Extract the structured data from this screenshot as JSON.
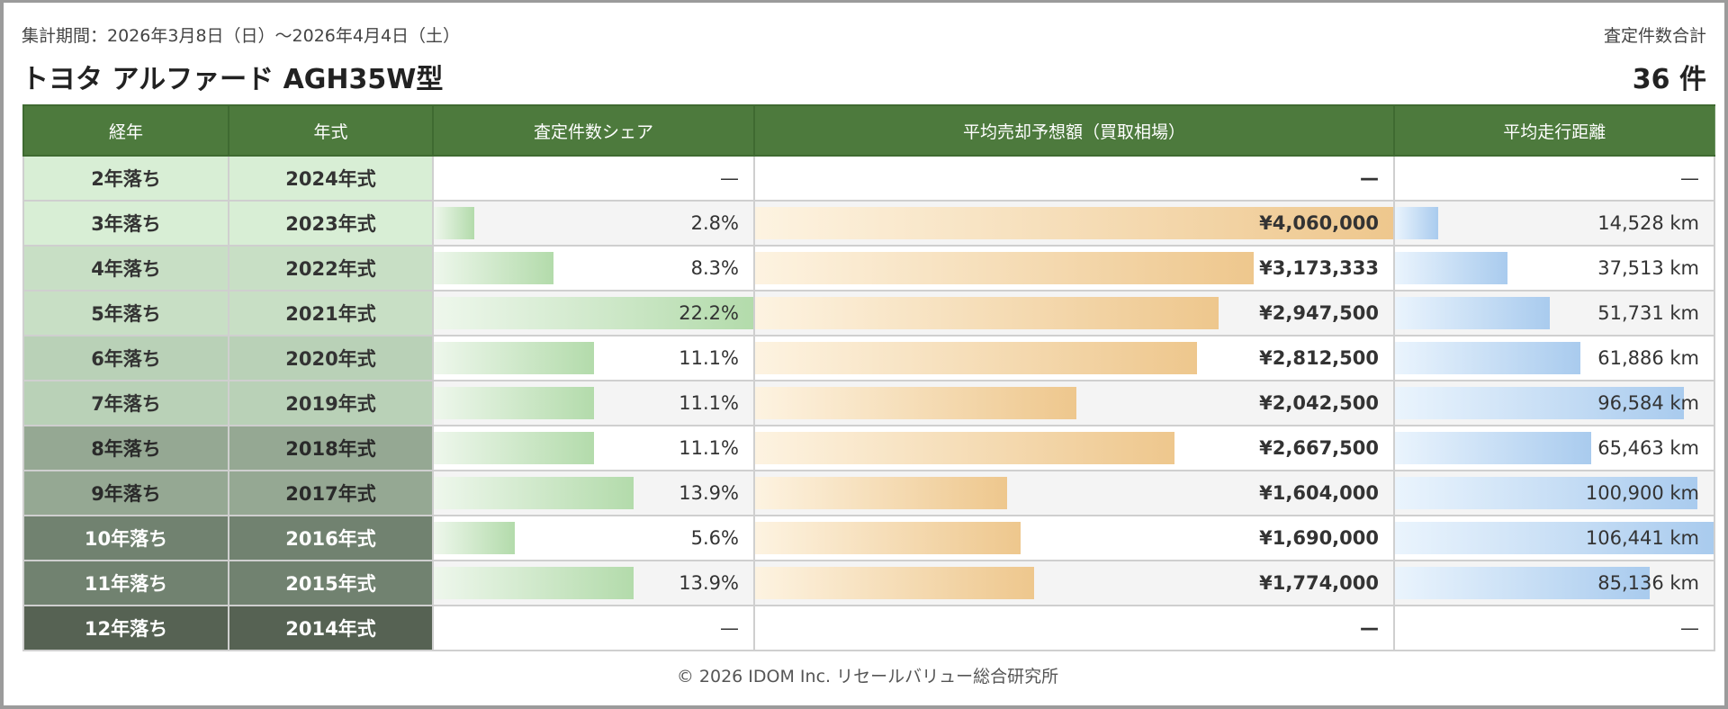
{
  "header": {
    "period": "集計期間：2026年3月8日（日）～2026年4月4日（土）",
    "title": "トヨタ アルファード AGH35W型",
    "total_label": "査定件数合計",
    "total": "36 件"
  },
  "columns": [
    "経年",
    "年式",
    "査定件数シェア",
    "平均売却予想額（買取相場）",
    "平均走行距離"
  ],
  "colors": {
    "header": "#4d7a3d",
    "share_bar": "#b3dbab",
    "price_bar": "#eec78d",
    "mileage_bar": "#a9cbee"
  },
  "rows": [
    {
      "age": "2年落ち",
      "year": "2024年式",
      "share": "—",
      "share_value": 0,
      "price": "—",
      "price_value": 0,
      "mileage": "—",
      "mileage_value": 0,
      "bg": "#d8eed5",
      "fg": "#333"
    },
    {
      "age": "3年落ち",
      "year": "2023年式",
      "share": "2.8%",
      "share_value": 2.8,
      "price": "¥4,060,000",
      "price_value": 4060000,
      "mileage": "14,528 km",
      "mileage_value": 14528,
      "bg": "#d8eed5",
      "fg": "#333"
    },
    {
      "age": "4年落ち",
      "year": "2022年式",
      "share": "8.3%",
      "share_value": 8.3,
      "price": "¥3,173,333",
      "price_value": 3173333,
      "mileage": "37,513 km",
      "mileage_value": 37513,
      "bg": "#c8dfc5",
      "fg": "#333"
    },
    {
      "age": "5年落ち",
      "year": "2021年式",
      "share": "22.2%",
      "share_value": 22.2,
      "price": "¥2,947,500",
      "price_value": 2947500,
      "mileage": "51,731 km",
      "mileage_value": 51731,
      "bg": "#c8dfc5",
      "fg": "#333"
    },
    {
      "age": "6年落ち",
      "year": "2020年式",
      "share": "11.1%",
      "share_value": 11.1,
      "price": "¥2,812,500",
      "price_value": 2812500,
      "mileage": "61,886 km",
      "mileage_value": 61886,
      "bg": "#b9d1b7",
      "fg": "#333"
    },
    {
      "age": "7年落ち",
      "year": "2019年式",
      "share": "11.1%",
      "share_value": 11.1,
      "price": "¥2,042,500",
      "price_value": 2042500,
      "mileage": "96,584 km",
      "mileage_value": 96584,
      "bg": "#b9d1b7",
      "fg": "#333"
    },
    {
      "age": "8年落ち",
      "year": "2018年式",
      "share": "11.1%",
      "share_value": 11.1,
      "price": "¥2,667,500",
      "price_value": 2667500,
      "mileage": "65,463 km",
      "mileage_value": 65463,
      "bg": "#95a893",
      "fg": "#2a2a2a"
    },
    {
      "age": "9年落ち",
      "year": "2017年式",
      "share": "13.9%",
      "share_value": 13.9,
      "price": "¥1,604,000",
      "price_value": 1604000,
      "mileage": "100,900 km",
      "mileage_value": 100900,
      "bg": "#95a893",
      "fg": "#2a2a2a"
    },
    {
      "age": "10年落ち",
      "year": "2016年式",
      "share": "5.6%",
      "share_value": 5.6,
      "price": "¥1,690,000",
      "price_value": 1690000,
      "mileage": "106,441 km",
      "mileage_value": 106441,
      "bg": "#718270",
      "fg": "#fff"
    },
    {
      "age": "11年落ち",
      "year": "2015年式",
      "share": "13.9%",
      "share_value": 13.9,
      "price": "¥1,774,000",
      "price_value": 1774000,
      "mileage": "85,136 km",
      "mileage_value": 85136,
      "bg": "#718270",
      "fg": "#fff"
    },
    {
      "age": "12年落ち",
      "year": "2014年式",
      "share": "—",
      "share_value": 0,
      "price": "—",
      "price_value": 0,
      "mileage": "—",
      "mileage_value": 0,
      "bg": "#566253",
      "fg": "#fff"
    }
  ],
  "footer": "© 2026 IDOM Inc. リセールバリュー総合研究所"
}
